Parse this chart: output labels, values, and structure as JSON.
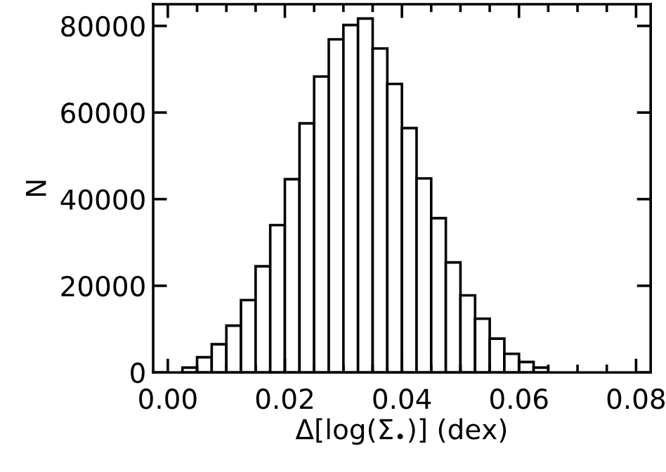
{
  "chart_data": {
    "type": "histogram",
    "xlabel": "Δ[log(Σ$_{•}$)] (dex)",
    "ylabel": "N",
    "bins": [
      0,
      0.0025,
      0.005,
      0.0075,
      0.01,
      0.0125,
      0.015,
      0.0175,
      0.02,
      0.0225,
      0.025,
      0.0275,
      0.03,
      0.0325,
      0.035,
      0.0375,
      0.04,
      0.0425,
      0.045,
      0.0475,
      0.05,
      0.0525,
      0.055,
      0.0575,
      0.06,
      0.0625,
      0.065,
      0.0675,
      0.07,
      0.0725,
      0.075
    ],
    "values": [
      null,
      1100,
      3500,
      6500,
      10800,
      16700,
      24500,
      34000,
      44600,
      57500,
      68300,
      76900,
      80200,
      81700,
      74800,
      66600,
      56400,
      44800,
      35600,
      25400,
      17800,
      12400,
      7800,
      4300,
      2400,
      1100,
      null,
      null,
      null,
      null
    ],
    "color": "#ffffff",
    "xlim": [
      -0.0025,
      0.0825
    ],
    "ylim": [
      0,
      85000
    ],
    "xticks": [
      {
        "value": 0,
        "label": "0.00"
      },
      {
        "value": 0.02,
        "label": "0.02"
      },
      {
        "value": 0.04,
        "label": "0.04"
      },
      {
        "value": 0.06,
        "label": "0.06"
      },
      {
        "value": 0.08,
        "label": "0.08"
      }
    ],
    "yticks": [
      0,
      20000,
      40000,
      60000,
      80000
    ],
    "grid": false
  }
}
